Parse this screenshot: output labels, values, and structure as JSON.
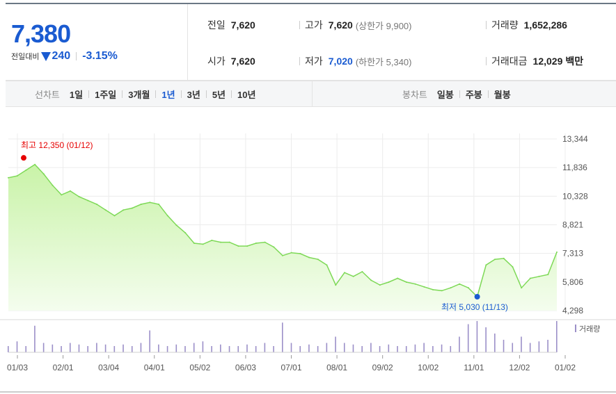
{
  "quote": {
    "price": "7,380",
    "change_label": "전일대비",
    "change": "240",
    "rate": "-3.15%"
  },
  "info": {
    "prev_label": "전일",
    "prev": "7,620",
    "high_label": "고가",
    "high": "7,620",
    "high_limit": "(상한가 9,900)",
    "volume_label": "거래량",
    "volume": "1,652,286",
    "open_label": "시가",
    "open": "7,620",
    "low_label": "저가",
    "low": "7,020",
    "low_limit": "(하한가 5,340)",
    "amount_label": "거래대금",
    "amount": "12,029",
    "amount_unit": "백만"
  },
  "tabs": {
    "line_label": "선차트",
    "line": [
      "1일",
      "1주일",
      "3개월",
      "1년",
      "3년",
      "5년",
      "10년"
    ],
    "active": "1년",
    "candle_label": "봉차트",
    "candle": [
      "일봉",
      "주봉",
      "월봉"
    ]
  },
  "colors": {
    "line": "#7ed957",
    "area_top": "#c9f3a8",
    "area_bottom": "#f4fdee",
    "high_marker": "#e60000",
    "low_marker": "#1a5bd1",
    "volume_bar": "#9b8fc8"
  },
  "chart_data": {
    "type": "area",
    "ylim": [
      4298,
      13344
    ],
    "y_ticks": [
      "13,344",
      "11,836",
      "10,328",
      "8,821",
      "7,313",
      "5,806",
      "4,298"
    ],
    "x_ticks": [
      "01/03",
      "02/01",
      "03/04",
      "04/01",
      "05/02",
      "06/03",
      "07/01",
      "08/01",
      "09/02",
      "10/02",
      "11/01",
      "12/02",
      "01/02"
    ],
    "annotations": {
      "high": "최고 12,350 (01/12)",
      "high_value": 12350,
      "low": "최저 5,030 (11/13)",
      "low_value": 5030
    },
    "volume_legend": "거래량",
    "x": [
      "01/03",
      "01/06",
      "01/10",
      "01/12",
      "01/17",
      "01/20",
      "01/25",
      "02/01",
      "02/07",
      "02/14",
      "02/21",
      "02/28",
      "03/04",
      "03/10",
      "03/17",
      "03/24",
      "03/31",
      "04/01",
      "04/07",
      "04/14",
      "04/21",
      "04/28",
      "05/02",
      "05/09",
      "05/16",
      "05/23",
      "05/30",
      "06/03",
      "06/10",
      "06/17",
      "06/24",
      "07/01",
      "07/08",
      "07/15",
      "07/22",
      "07/29",
      "08/01",
      "08/08",
      "08/15",
      "08/22",
      "08/29",
      "09/02",
      "09/09",
      "09/16",
      "09/23",
      "09/30",
      "10/02",
      "10/10",
      "10/17",
      "10/24",
      "10/31",
      "11/01",
      "11/07",
      "11/13",
      "11/15",
      "11/20",
      "11/27",
      "12/02",
      "12/09",
      "12/16",
      "12/23",
      "12/30",
      "01/02"
    ],
    "values": [
      11300,
      11400,
      11700,
      12000,
      11500,
      10900,
      10400,
      10600,
      10300,
      10100,
      9900,
      9600,
      9300,
      9600,
      9700,
      9900,
      10000,
      9900,
      9300,
      8800,
      8400,
      7850,
      7800,
      8000,
      7900,
      7900,
      7700,
      7700,
      7850,
      7900,
      7650,
      7200,
      7350,
      7300,
      7100,
      7000,
      6700,
      5650,
      6300,
      6100,
      6350,
      5900,
      5650,
      5800,
      6000,
      5800,
      5700,
      5550,
      5400,
      5350,
      5500,
      5700,
      5500,
      5030,
      6700,
      7000,
      7050,
      6600,
      5500,
      6000,
      6100,
      6200,
      7380
    ],
    "volume": [
      0.2,
      0.35,
      0.2,
      0.85,
      0.3,
      0.25,
      0.2,
      0.3,
      0.25,
      0.2,
      0.3,
      0.25,
      0.2,
      0.25,
      0.2,
      0.3,
      0.7,
      0.25,
      0.2,
      0.25,
      0.2,
      0.3,
      0.35,
      0.2,
      0.25,
      0.2,
      0.2,
      0.25,
      0.2,
      0.3,
      0.2,
      0.95,
      0.3,
      0.2,
      0.25,
      0.2,
      0.3,
      0.5,
      0.3,
      0.25,
      0.2,
      0.3,
      0.2,
      0.25,
      0.2,
      0.2,
      0.25,
      0.3,
      0.2,
      0.25,
      0.2,
      0.5,
      0.9,
      1.0,
      0.8,
      0.6,
      0.4,
      0.3,
      0.5,
      0.3,
      0.35,
      0.4,
      1.0
    ]
  }
}
